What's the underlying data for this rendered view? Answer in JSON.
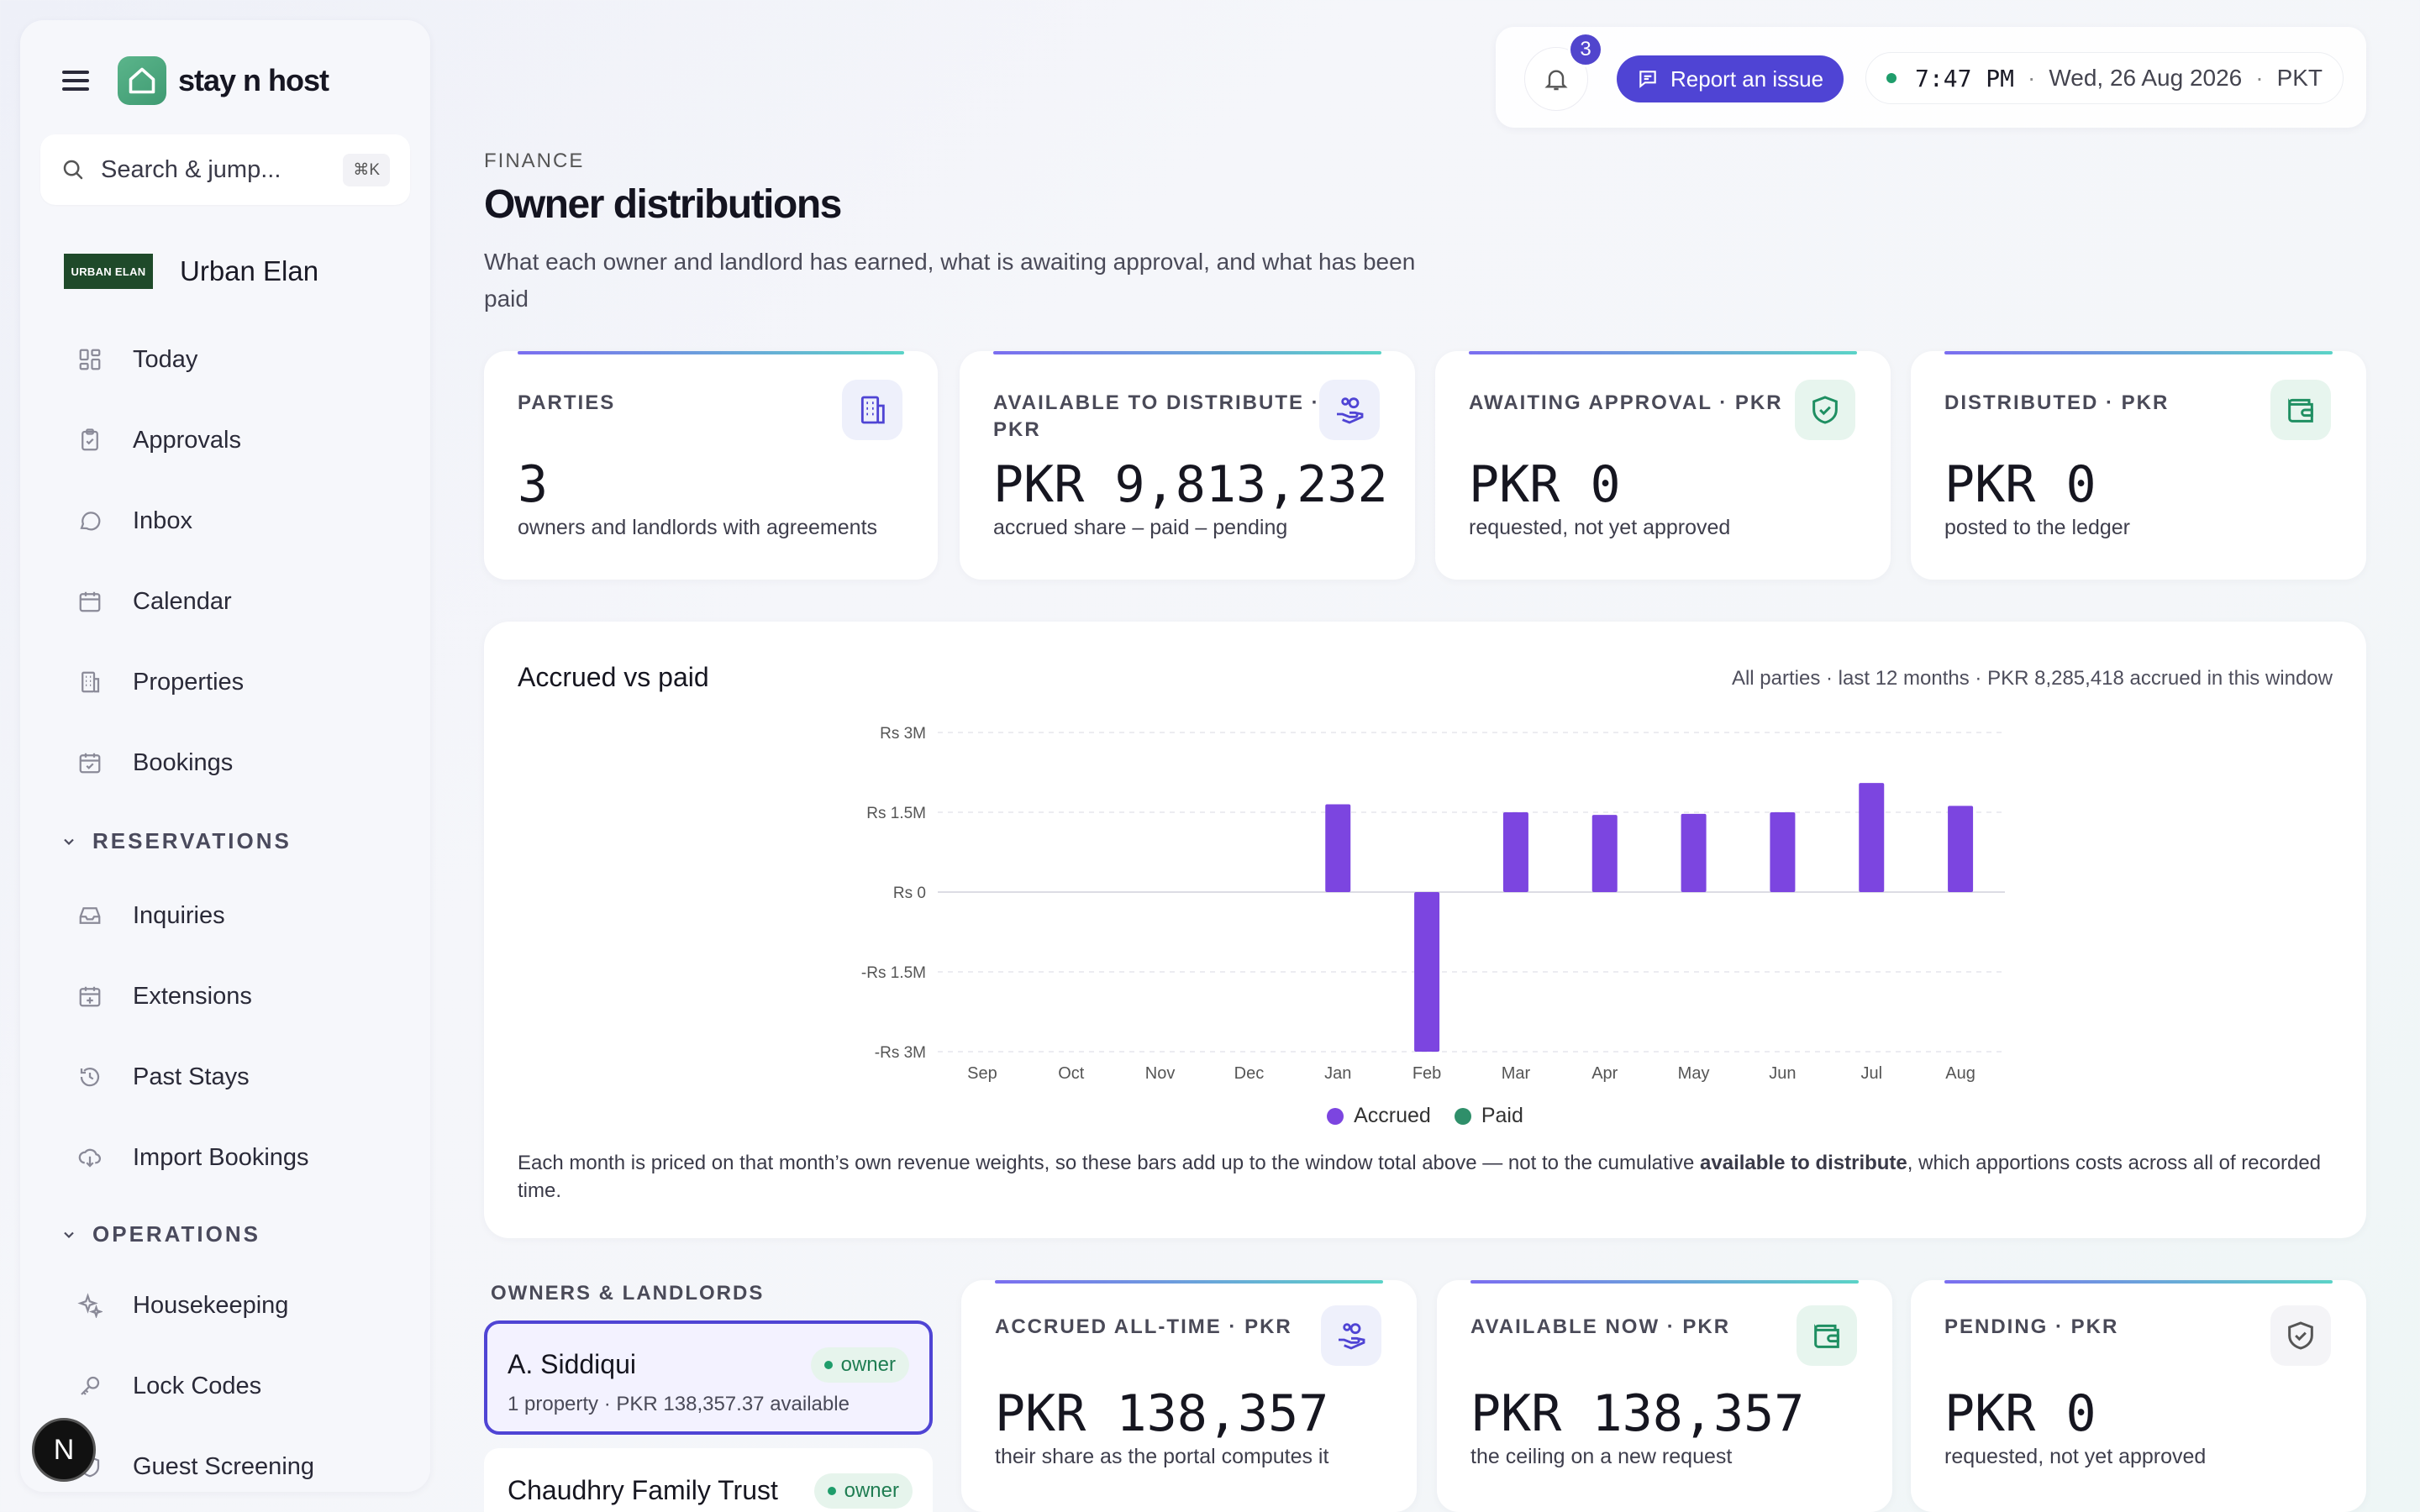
{
  "app": {
    "name": "stay n host"
  },
  "search": {
    "placeholder": "Search & jump...",
    "shortcut": "⌘K"
  },
  "org": {
    "logo_text": "URBAN ELAN",
    "name": "Urban Elan"
  },
  "sidebar": {
    "items": [
      {
        "label": "Today",
        "icon": "grid-icon"
      },
      {
        "label": "Approvals",
        "icon": "clipboard-icon"
      },
      {
        "label": "Inbox",
        "icon": "chat-icon"
      },
      {
        "label": "Calendar",
        "icon": "calendar-icon"
      },
      {
        "label": "Properties",
        "icon": "building-icon"
      },
      {
        "label": "Bookings",
        "icon": "calendar-check-icon"
      }
    ],
    "reservations_label": "RESERVATIONS",
    "reservations": [
      {
        "label": "Inquiries",
        "icon": "inbox-tray-icon"
      },
      {
        "label": "Extensions",
        "icon": "calendar-plus-icon"
      },
      {
        "label": "Past Stays",
        "icon": "history-icon"
      },
      {
        "label": "Import Bookings",
        "icon": "cloud-download-icon"
      }
    ],
    "operations_label": "OPERATIONS",
    "operations": [
      {
        "label": "Housekeeping",
        "icon": "sparkle-icon"
      },
      {
        "label": "Lock Codes",
        "icon": "key-icon"
      },
      {
        "label": "Guest Screening",
        "icon": "shield-user-icon"
      }
    ],
    "avatar_letter": "N"
  },
  "topbar": {
    "notifications_count": "3",
    "report_label": "Report an issue",
    "time": "7:47 PM",
    "date": "Wed, 26 Aug 2026",
    "tz": "PKT"
  },
  "page": {
    "eyebrow": "FINANCE",
    "title": "Owner distributions",
    "description": "What each owner and landlord has earned, what is awaiting approval, and what has been paid"
  },
  "kpis": [
    {
      "label": "PARTIES",
      "value": "3",
      "sub": "owners and landlords with agreements",
      "icon": "building-icon"
    },
    {
      "label_line1": "AVAILABLE TO DISTRIBUTE ·",
      "label_line2": "PKR",
      "value": "PKR 9,813,232",
      "sub": "accrued share – paid – pending",
      "icon": "hand-coins-icon"
    },
    {
      "label": "AWAITING APPROVAL · PKR",
      "value": "PKR 0",
      "sub": "requested, not yet approved",
      "icon": "shield-check-icon"
    },
    {
      "label": "DISTRIBUTED · PKR",
      "value": "PKR 0",
      "sub": "posted to the ledger",
      "icon": "wallet-icon"
    }
  ],
  "chart": {
    "title": "Accrued vs paid",
    "meta": "All parties · last 12 months · PKR 8,285,418 accrued in this window",
    "note_before": "Each month is priced on that month’s own revenue weights, so these bars add up to the window total above — not to the cumulative ",
    "note_bold": "available to distribute",
    "note_after": ", which apportions costs across all of recorded time."
  },
  "chart_data": {
    "type": "bar",
    "title": "Accrued vs paid",
    "categories": [
      "Sep",
      "Oct",
      "Nov",
      "Dec",
      "Jan",
      "Feb",
      "Mar",
      "Apr",
      "May",
      "Jun",
      "Jul",
      "Aug"
    ],
    "series": [
      {
        "name": "Accrued",
        "color": "#7c45e0",
        "values": [
          0,
          0,
          0,
          0,
          1650000,
          -3000000,
          1500000,
          1450000,
          1470000,
          1500000,
          2050000,
          1620000
        ]
      },
      {
        "name": "Paid",
        "color": "#2f8f6a",
        "values": [
          0,
          0,
          0,
          0,
          0,
          0,
          0,
          0,
          0,
          0,
          0,
          0
        ]
      }
    ],
    "yticks": [
      "Rs 3M",
      "Rs 1.5M",
      "Rs 0",
      "-Rs 1.5M",
      "-Rs 3M"
    ],
    "ytick_values": [
      3000000,
      1500000,
      0,
      -1500000,
      -3000000
    ],
    "ylim": [
      -3000000,
      3000000
    ],
    "grid": true,
    "legend": "bottom-center"
  },
  "owners": {
    "label": "OWNERS & LANDLORDS",
    "items": [
      {
        "name": "A. Siddiqui",
        "badge": "owner",
        "meta": "1 property · PKR 138,357.37 available",
        "selected": true
      },
      {
        "name": "Chaudhry Family Trust",
        "badge": "owner",
        "meta": "",
        "selected": false
      }
    ]
  },
  "owner_kpis": [
    {
      "label": "ACCRUED ALL-TIME · PKR",
      "value": "PKR 138,357",
      "sub": "their share as the portal computes it",
      "icon": "hand-coins-icon"
    },
    {
      "label": "AVAILABLE NOW · PKR",
      "value": "PKR 138,357",
      "sub": "the ceiling on a new request",
      "icon": "wallet-icon"
    },
    {
      "label": "PENDING · PKR",
      "value": "PKR 0",
      "sub": "requested, not yet approved",
      "icon": "shield-check-icon"
    }
  ],
  "colors": {
    "accent": "#4f44d4",
    "bar": "#7c45e0",
    "paid": "#2f8f6a",
    "green": "#1f9d6b"
  }
}
